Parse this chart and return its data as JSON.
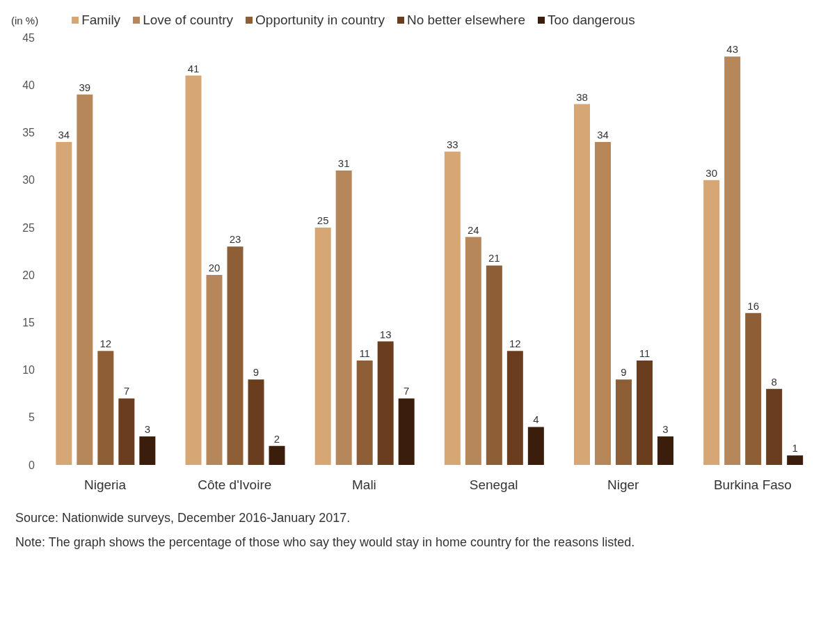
{
  "chart_data": {
    "type": "bar",
    "ylabel": "(in %)",
    "categories": [
      "Nigeria",
      "Côte d'Ivoire",
      "Mali",
      "Senegal",
      "Niger",
      "Burkina Faso"
    ],
    "series": [
      {
        "name": "Family",
        "color": "#d6a774",
        "values": [
          34,
          41,
          25,
          33,
          38,
          30
        ]
      },
      {
        "name": "Love of country",
        "color": "#b5875a",
        "values": [
          39,
          20,
          31,
          24,
          34,
          43
        ]
      },
      {
        "name": "Opportunity in country",
        "color": "#8e5f36",
        "values": [
          12,
          23,
          11,
          21,
          9,
          16
        ]
      },
      {
        "name": "No better elsewhere",
        "color": "#693d1d",
        "values": [
          7,
          9,
          13,
          12,
          11,
          8
        ]
      },
      {
        "name": "Too dangerous",
        "color": "#3a1d0b",
        "values": [
          3,
          2,
          7,
          4,
          3,
          1
        ]
      }
    ],
    "ylim": [
      0,
      45
    ],
    "yticks": [
      0,
      5,
      10,
      15,
      20,
      25,
      30,
      35,
      40,
      45
    ],
    "data_labels": true,
    "legend": "top",
    "annotations": [
      "Source: Nationwide surveys, December 2016-January 2017.",
      "Note: The graph shows the percentage of those who say they would stay in home country for the reasons listed."
    ]
  }
}
